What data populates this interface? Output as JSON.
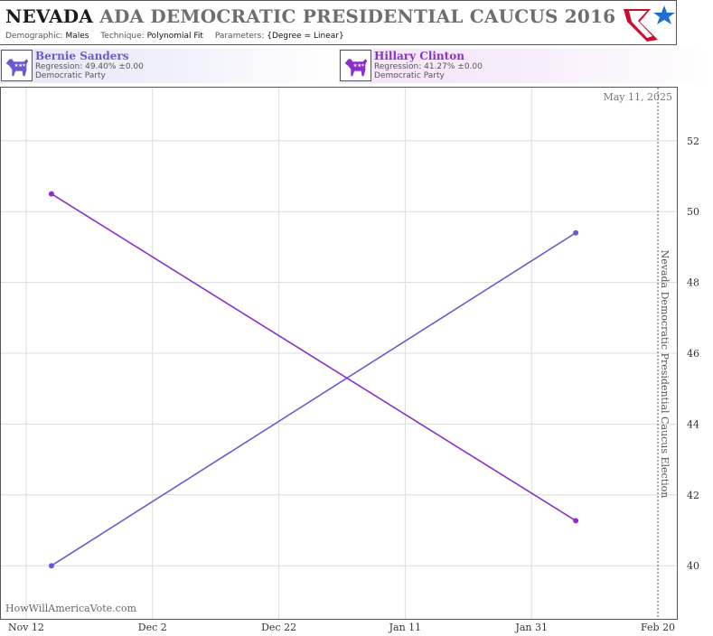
{
  "header": {
    "title_state": "NEVADA",
    "title_rest": " ADA DEMOCRATIC PRESIDENTIAL CAUCUS 2016",
    "demographic_label": "Demographic:",
    "demographic_value": "Males",
    "technique_label": "Technique:",
    "technique_value": "Polynomial Fit",
    "parameters_label": "Parameters:",
    "parameters_value": "{Degree = Linear}"
  },
  "candidates": [
    {
      "name": "Bernie Sanders",
      "regression": "Regression: 49.40% ±0.00",
      "party": "Democratic Party",
      "color": "#6a5acd",
      "icon": "donkey-icon"
    },
    {
      "name": "Hillary Clinton",
      "regression": "Regression: 41.27% ±0.00",
      "party": "Democratic Party",
      "color": "#8b2fc9",
      "icon": "donkey-icon"
    }
  ],
  "chart_data": {
    "type": "line",
    "x_type": "date",
    "xlim": [
      "2015-11-08",
      "2016-02-23"
    ],
    "ylim": [
      38.5,
      53.5
    ],
    "x_ticks": [
      {
        "date": "2015-11-12",
        "label": "Nov 12"
      },
      {
        "date": "2015-12-02",
        "label": "Dec 2"
      },
      {
        "date": "2015-12-22",
        "label": "Dec 22"
      },
      {
        "date": "2016-01-11",
        "label": "Jan 11"
      },
      {
        "date": "2016-01-31",
        "label": "Jan 31"
      },
      {
        "date": "2016-02-20",
        "label": "Feb 20"
      }
    ],
    "y_ticks": [
      40,
      42,
      44,
      46,
      48,
      50,
      52
    ],
    "grid": true,
    "y_axis_side": "right",
    "date_label": "May 11, 2025",
    "event": {
      "date": "2016-02-20",
      "label": "Nevada Democratic Presidential Caucus Election"
    },
    "watermark": "HowWillAmericaVote.com",
    "series": [
      {
        "name": "Bernie Sanders",
        "color": "#6a5acd",
        "x": [
          "2015-11-16",
          "2016-02-07"
        ],
        "y": [
          40.0,
          49.4
        ]
      },
      {
        "name": "Hillary Clinton",
        "color": "#8b2fc9",
        "x": [
          "2015-11-16",
          "2016-02-07"
        ],
        "y": [
          50.5,
          41.27
        ]
      }
    ]
  }
}
